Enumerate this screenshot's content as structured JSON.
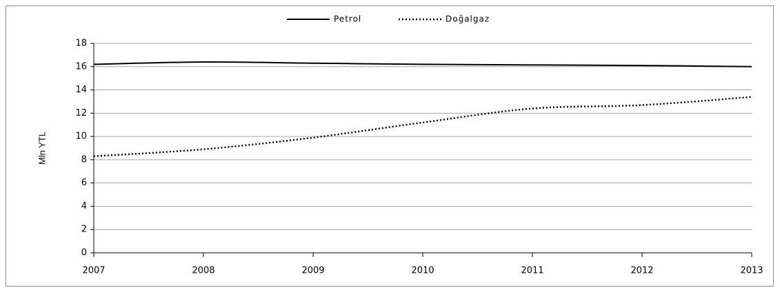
{
  "chart_data": {
    "type": "line",
    "x": [
      2007,
      2008,
      2009,
      2010,
      2011,
      2012,
      2013
    ],
    "series": [
      {
        "name": "Petrol",
        "color": "#000000",
        "dash": "solid",
        "values": [
          16.2,
          16.4,
          16.3,
          16.2,
          16.15,
          16.1,
          16.0
        ]
      },
      {
        "name": "Doğalgaz",
        "color": "#000000",
        "dash": "dotted",
        "values": [
          8.3,
          8.9,
          9.9,
          11.2,
          12.4,
          12.7,
          13.4
        ]
      }
    ],
    "y_label": "Mln YTL",
    "xlim": [
      2007,
      2013
    ],
    "xticks": [
      2007,
      2008,
      2009,
      2010,
      2011,
      2012,
      2013
    ],
    "ylim": [
      0,
      18
    ],
    "yticks": [
      0,
      2,
      4,
      6,
      8,
      10,
      12,
      14,
      16,
      18
    ],
    "grid": true,
    "legend": "top"
  }
}
